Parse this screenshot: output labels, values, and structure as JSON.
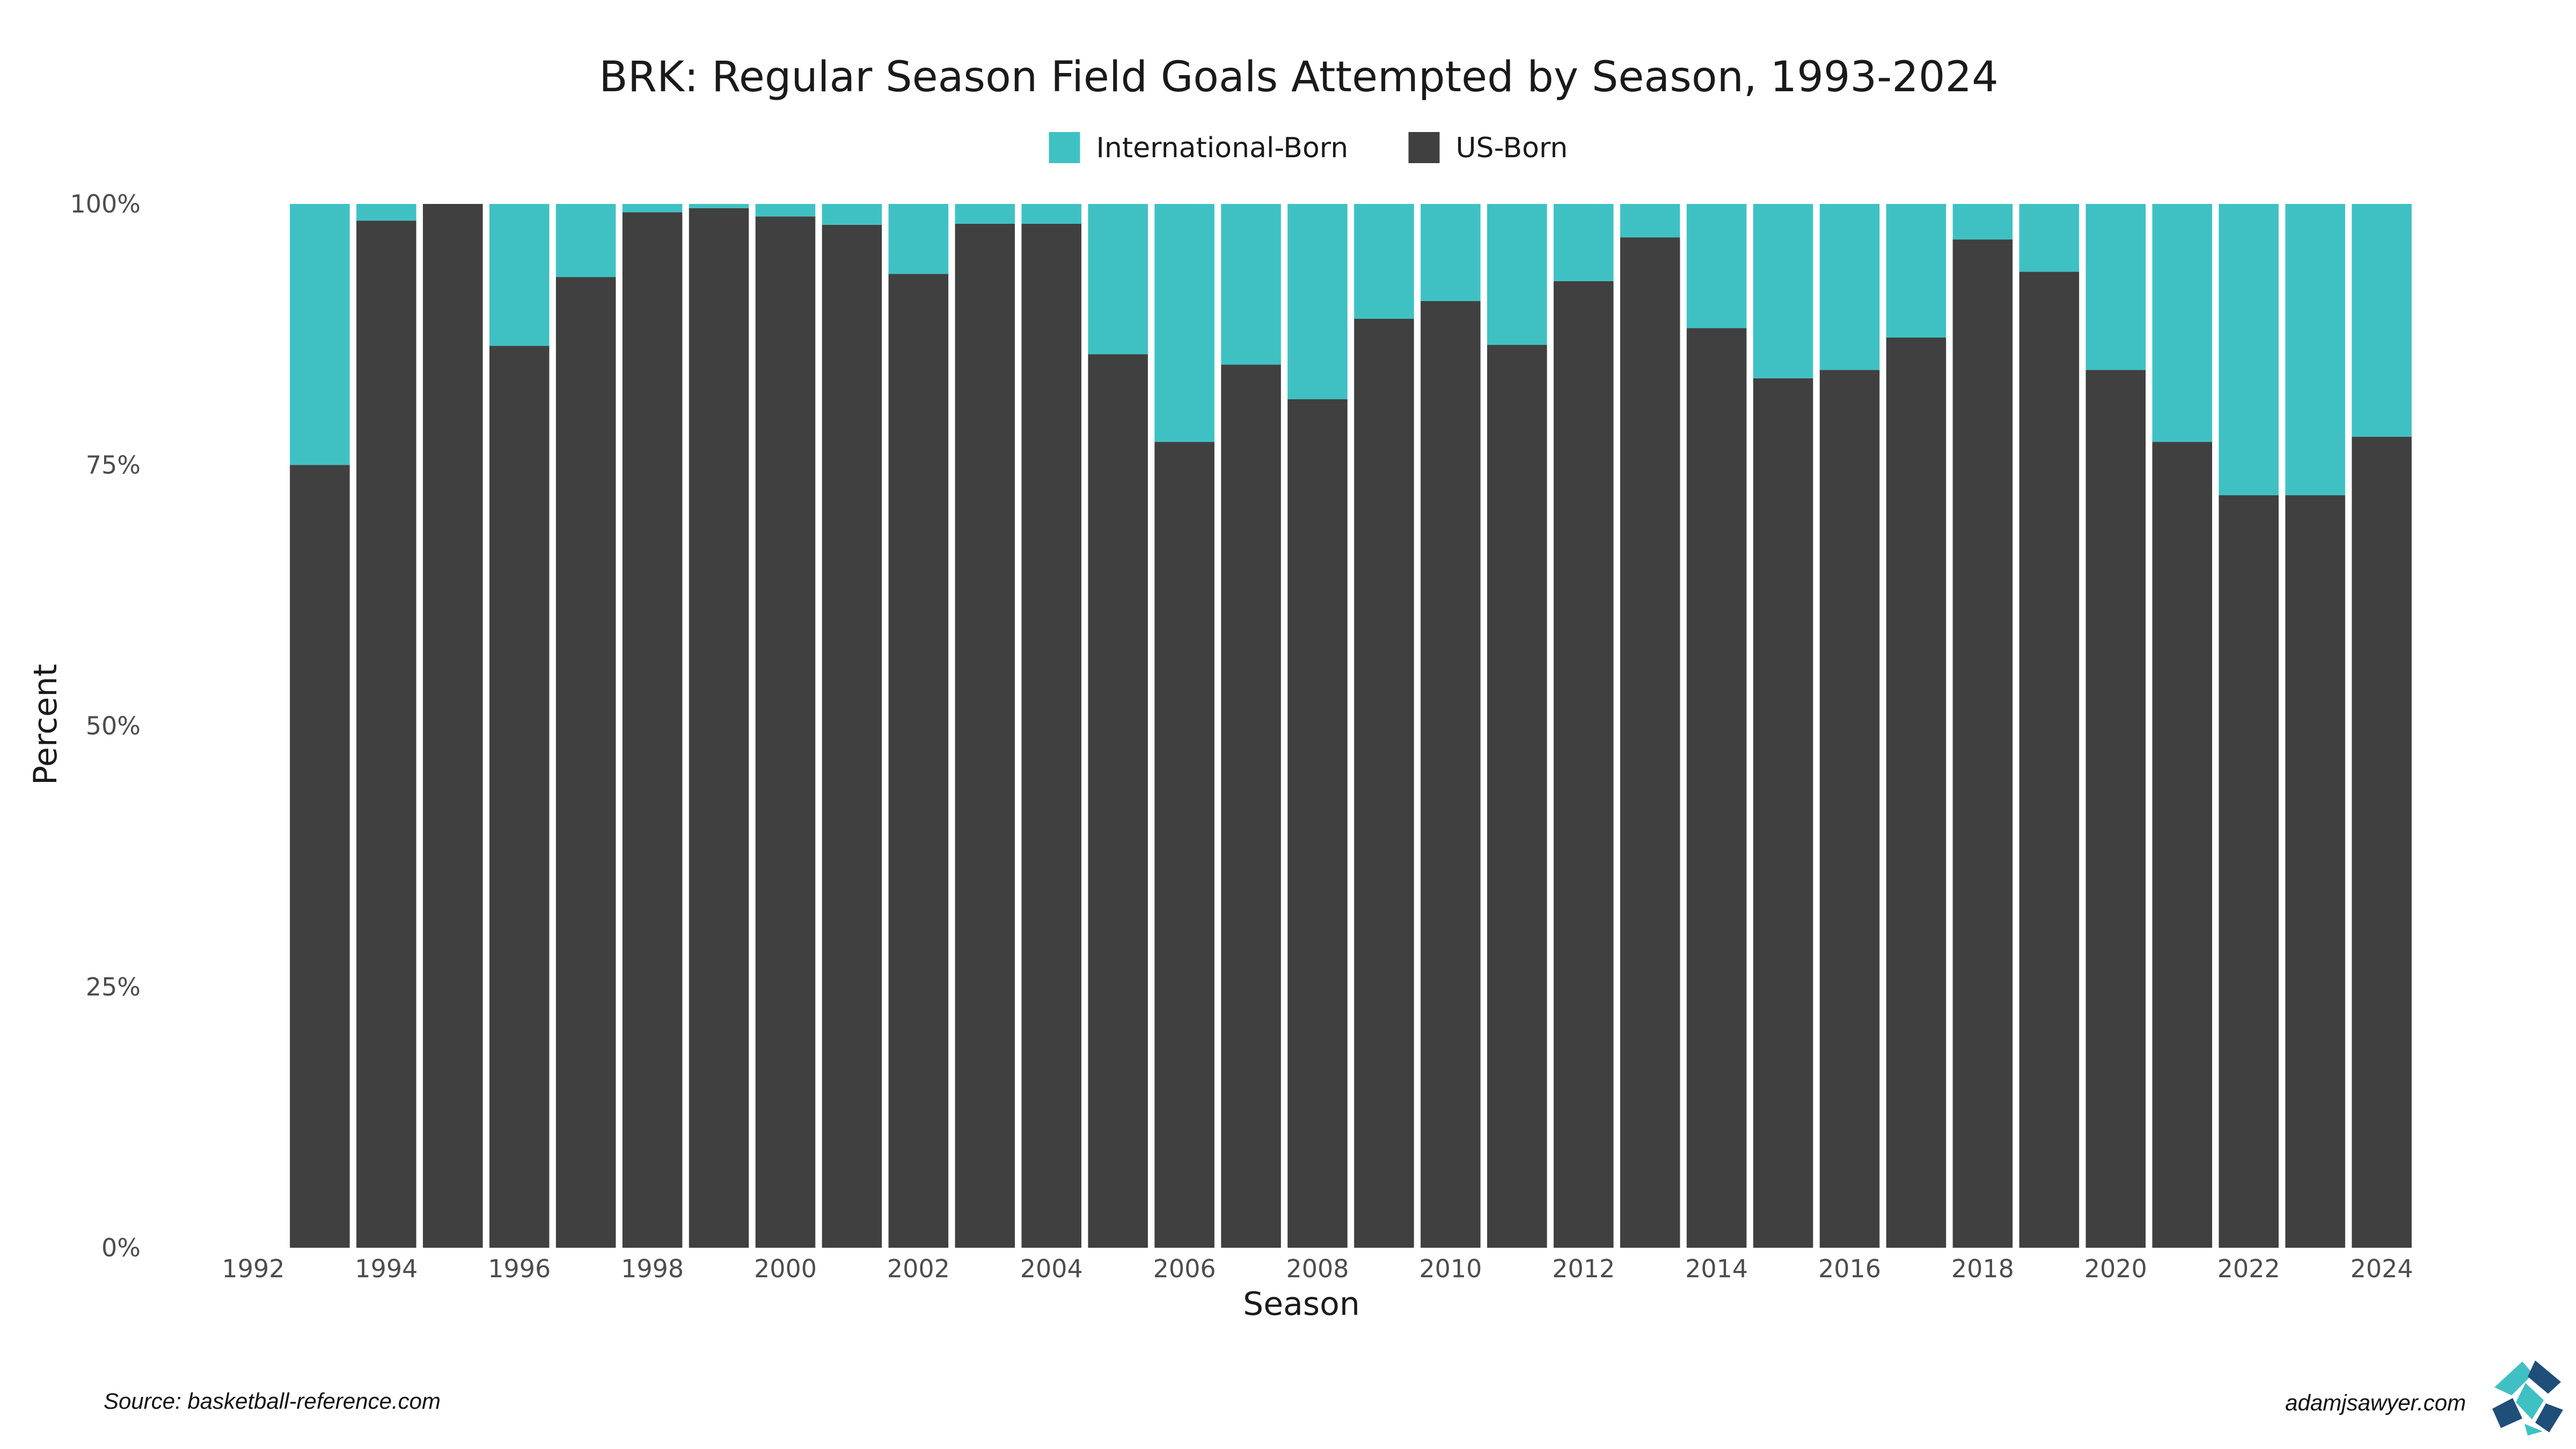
{
  "chart_data": {
    "type": "bar",
    "stacked": true,
    "title": "BRK: Regular Season Field Goals Attempted by Season, 1993-2024",
    "xlabel": "Season",
    "ylabel": "Percent",
    "x": [
      1993,
      1994,
      1995,
      1996,
      1997,
      1998,
      1999,
      2000,
      2001,
      2002,
      2003,
      2004,
      2005,
      2006,
      2007,
      2008,
      2009,
      2010,
      2011,
      2012,
      2013,
      2014,
      2015,
      2016,
      2017,
      2018,
      2019,
      2020,
      2021,
      2022,
      2023,
      2024
    ],
    "series": [
      {
        "name": "US-Born",
        "color": "#404040",
        "values": [
          75.0,
          98.4,
          100.0,
          86.4,
          93.0,
          99.2,
          99.6,
          98.8,
          98.0,
          93.3,
          98.1,
          98.1,
          85.6,
          77.2,
          84.6,
          81.3,
          89.0,
          90.7,
          86.5,
          92.6,
          96.8,
          88.1,
          83.3,
          84.1,
          87.2,
          96.6,
          93.5,
          84.1,
          77.2,
          72.1,
          72.1,
          77.7
        ]
      },
      {
        "name": "International-Born",
        "color": "#3fc1c3",
        "values": [
          25.0,
          1.6,
          0.0,
          13.6,
          7.0,
          0.8,
          0.4,
          1.2,
          2.0,
          6.7,
          1.9,
          1.9,
          14.4,
          22.8,
          15.4,
          18.7,
          11.0,
          9.3,
          13.5,
          7.4,
          3.2,
          11.9,
          16.7,
          15.9,
          12.8,
          3.4,
          6.5,
          15.9,
          22.8,
          27.9,
          27.9,
          22.3
        ]
      }
    ],
    "legend": {
      "position": "top",
      "entries": [
        "International-Born",
        "US-Born"
      ]
    },
    "xlim": [
      1992,
      2024
    ],
    "xticks": [
      "1992",
      "1994",
      "1996",
      "1998",
      "2000",
      "2002",
      "2004",
      "2006",
      "2008",
      "2010",
      "2012",
      "2014",
      "2016",
      "2018",
      "2020",
      "2022",
      "2024"
    ],
    "ylim": [
      0,
      100
    ],
    "yticks": [
      "0%",
      "25%",
      "50%",
      "75%",
      "100%"
    ],
    "grid": false
  },
  "footer": {
    "source": "Source: basketball-reference.com",
    "credit": "adamjsawyer.com"
  },
  "logo_icon": "adamjsawyer-logo-icon"
}
